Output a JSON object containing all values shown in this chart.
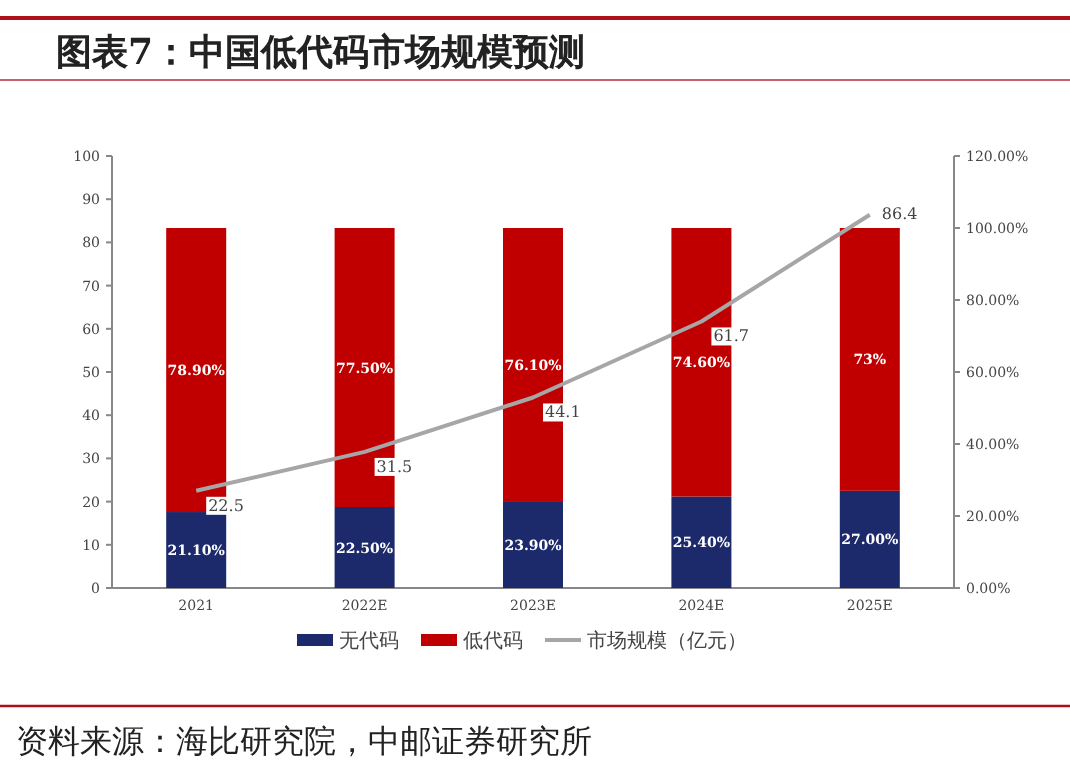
{
  "chart_data": {
    "type": "bar",
    "title": "图表7：中国低代码市场规模预测",
    "annotations": [
      "资料来源：海比研究院，中邮证券研究所"
    ],
    "categories": [
      "2021",
      "2022E",
      "2023E",
      "2024E",
      "2025E"
    ],
    "stacked": true,
    "legend": "bottom",
    "marker": "none",
    "series": [
      {
        "name": "无代码",
        "color": "#1c2a6b",
        "axis": "y2",
        "values": [
          21.1,
          22.5,
          23.9,
          25.4,
          27.0
        ],
        "value_labels": [
          "21.10%",
          "22.50%",
          "23.90%",
          "25.40%",
          "27.00%"
        ]
      },
      {
        "name": "低代码",
        "color": "#c00000",
        "axis": "y2",
        "values": [
          78.9,
          77.5,
          76.1,
          74.6,
          73
        ],
        "value_labels": [
          "78.90%",
          "77.50%",
          "76.10%",
          "74.60%",
          "73%"
        ]
      },
      {
        "name": "市场规模（亿元）",
        "type": "line",
        "color": "#a6a6a6",
        "values": [
          22.5,
          31.5,
          44.1,
          61.7,
          86.4
        ],
        "value_labels": [
          "22.5",
          "31.5",
          "44.1",
          "61.7",
          "86.4"
        ]
      }
    ],
    "ylim": [
      0,
      100
    ],
    "yticks": [
      0,
      10,
      20,
      30,
      40,
      50,
      60,
      70,
      80,
      90,
      100
    ],
    "y2lim": [
      0,
      120
    ],
    "y2ticks": [
      {
        "value": 0,
        "label": "0.00%"
      },
      {
        "value": 20,
        "label": "20.00%"
      },
      {
        "value": 40,
        "label": "40.00%"
      },
      {
        "value": 60,
        "label": "60.00%"
      },
      {
        "value": 80,
        "label": "80.00%"
      },
      {
        "value": 100,
        "label": "100.00%"
      },
      {
        "value": 120,
        "label": "120.00%"
      }
    ]
  }
}
